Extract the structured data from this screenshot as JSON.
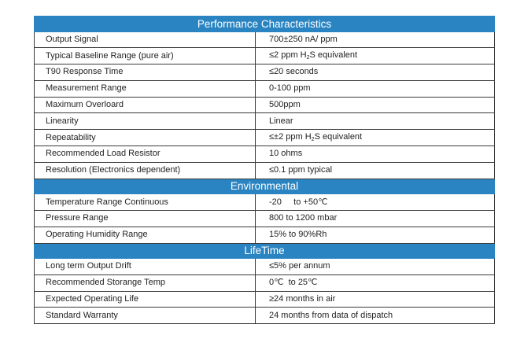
{
  "sections": [
    {
      "title": "Performance Characteristics",
      "rows": [
        {
          "label": "Output Signal",
          "value": "700±250 nA/ ppm"
        },
        {
          "label": "Typical Baseline Range (pure air)",
          "value_pre": "≤2 ppm H",
          "value_sub": "2",
          "value_post": "S equivalent"
        },
        {
          "label": "T90 Response Time",
          "value": "≤20 seconds"
        },
        {
          "label": "Measurement Range",
          "value": "0-100 ppm"
        },
        {
          "label": "Maximum Overloard",
          "value": "500ppm"
        },
        {
          "label": "Linearity",
          "value": "Linear"
        },
        {
          "label": "Repeatability",
          "value_pre": "≤±2 ppm  H",
          "value_sub": "2",
          "value_post": "S equivalent"
        },
        {
          "label": "Recommended Load Resistor",
          "value": "10 ohms"
        },
        {
          "label": "Resolution (Electronics dependent)",
          "value": "≤0.1 ppm typical"
        }
      ]
    },
    {
      "title": "Environmental",
      "rows": [
        {
          "label": "Temperature Range Continuous",
          "value": "-20     to +50℃"
        },
        {
          "label": "Pressure Range",
          "value": "800 to 1200 mbar"
        },
        {
          "label": "Operating Humidity Range",
          "value": "15% to 90%Rh"
        }
      ]
    },
    {
      "title": "LifeTime",
      "rows": [
        {
          "label": "Long term Output Drift",
          "value": "≤5% per annum"
        },
        {
          "label": "Recommended Storange Temp",
          "value": "0℃  to 25℃"
        },
        {
          "label": "Expected Operating Life",
          "value": "≥24 months in air"
        },
        {
          "label": "Standard Warranty",
          "value": "24 months from data of dispatch"
        }
      ]
    }
  ]
}
